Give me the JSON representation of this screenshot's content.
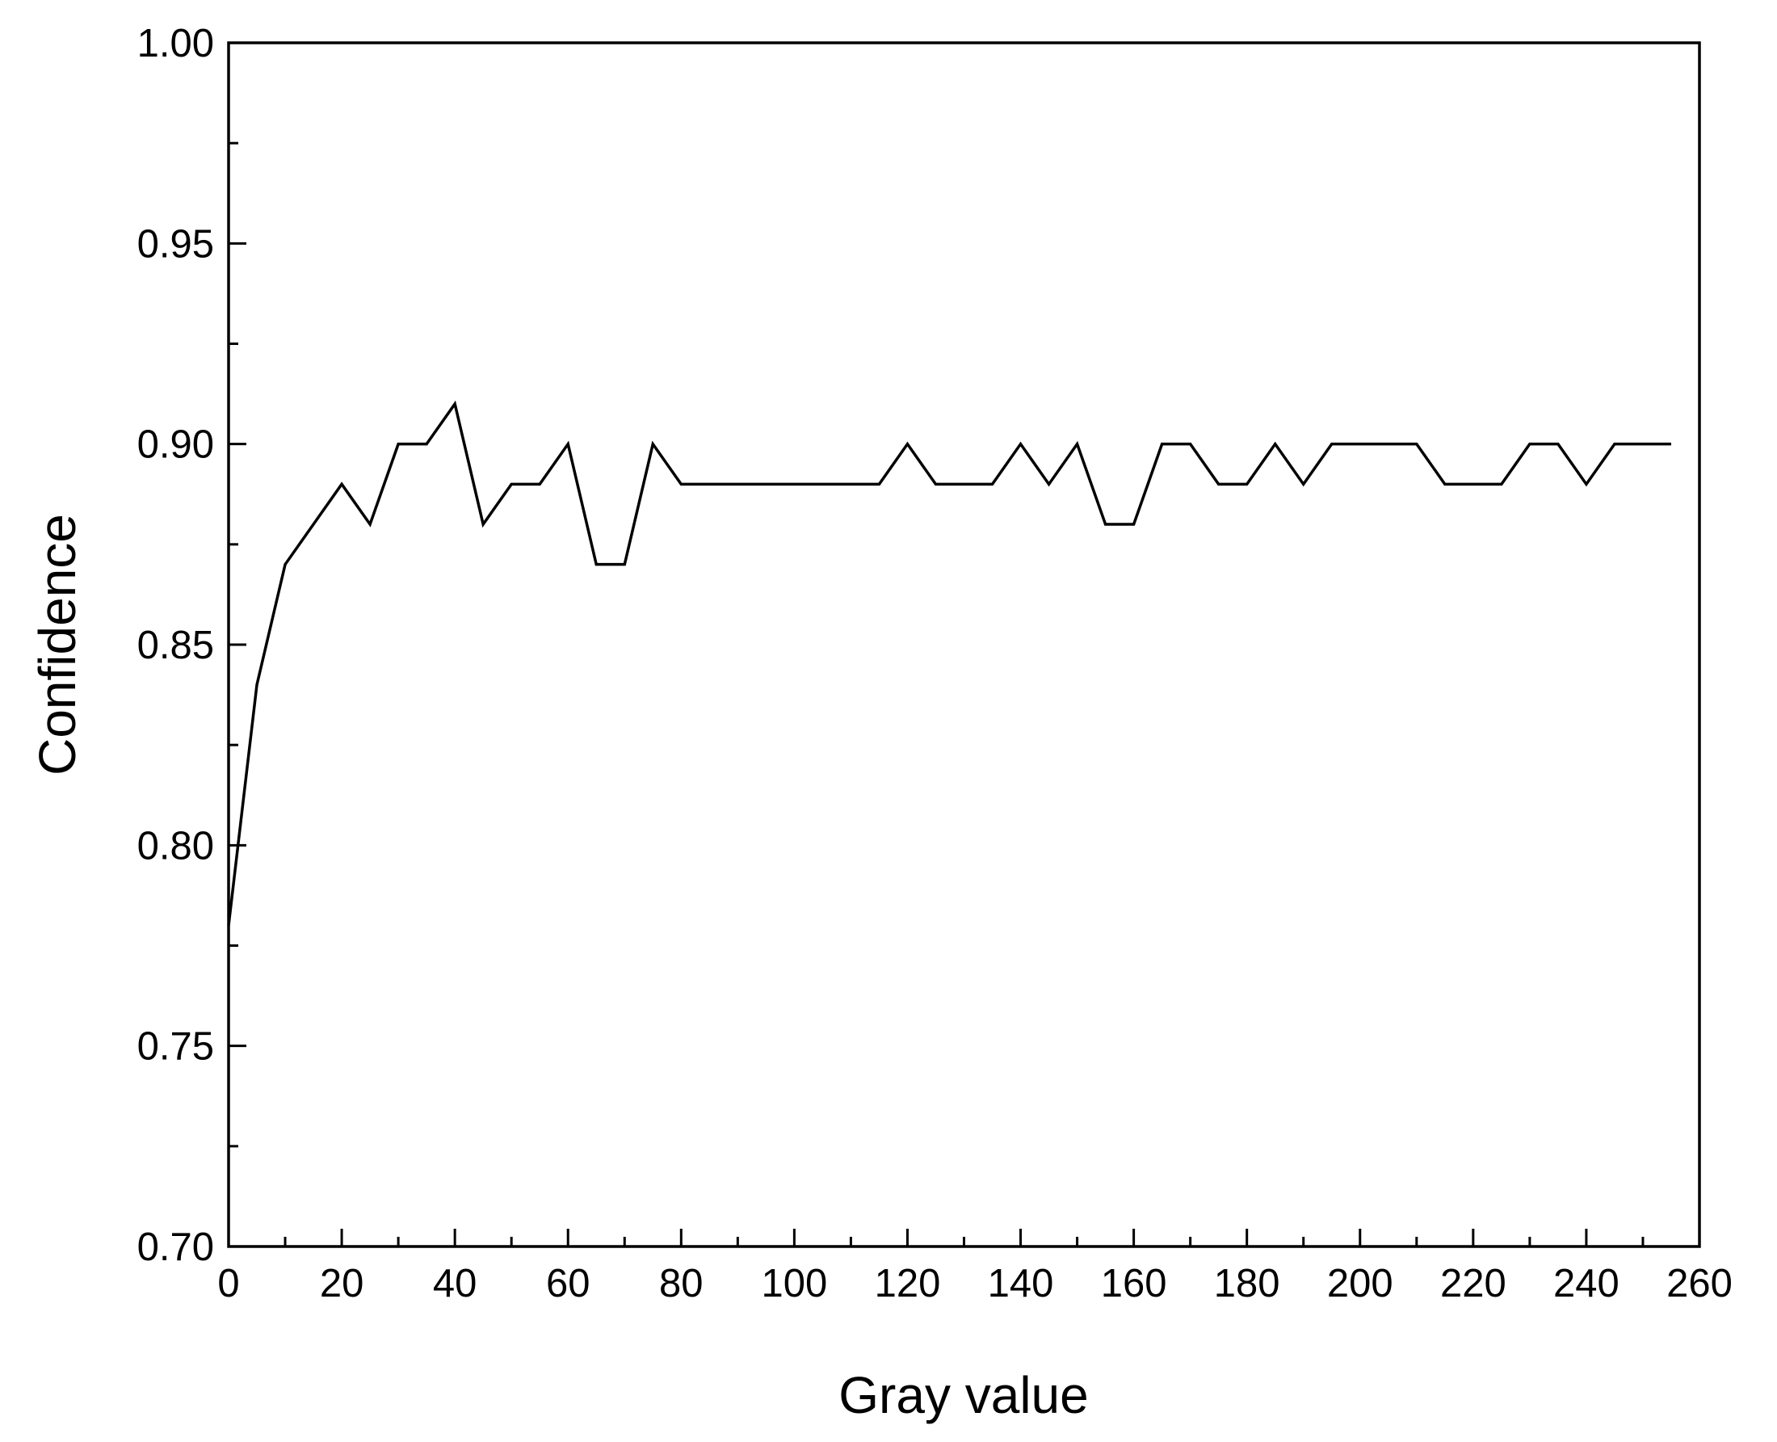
{
  "chart_data": {
    "type": "line",
    "title": "",
    "xlabel": "Gray value",
    "ylabel": "Confidence",
    "xlim": [
      0,
      260
    ],
    "ylim": [
      0.7,
      1.0
    ],
    "grid": false,
    "legend": "none",
    "x_ticks": [
      0,
      20,
      40,
      60,
      80,
      100,
      120,
      140,
      160,
      180,
      200,
      220,
      240,
      260
    ],
    "x_tick_labels": [
      "0",
      "20",
      "40",
      "60",
      "80",
      "100",
      "120",
      "140",
      "160",
      "180",
      "200",
      "220",
      "240",
      "260"
    ],
    "x_minor_step": 10,
    "y_ticks": [
      0.7,
      0.75,
      0.8,
      0.85,
      0.9,
      0.95,
      1.0
    ],
    "y_tick_labels": [
      "0.70",
      "0.75",
      "0.80",
      "0.85",
      "0.90",
      "0.95",
      "1.00"
    ],
    "y_minor_step": 0.025,
    "line_color": "#000000",
    "series": [
      {
        "x": [
          0,
          5,
          10,
          15,
          20,
          25,
          30,
          35,
          40,
          45,
          50,
          55,
          60,
          65,
          70,
          75,
          80,
          85,
          90,
          95,
          100,
          105,
          110,
          115,
          120,
          125,
          130,
          135,
          140,
          145,
          150,
          155,
          160,
          165,
          170,
          175,
          180,
          185,
          190,
          195,
          200,
          205,
          210,
          215,
          220,
          225,
          230,
          235,
          240,
          245,
          250,
          255
        ],
        "values": [
          0.78,
          0.84,
          0.87,
          0.88,
          0.89,
          0.88,
          0.9,
          0.9,
          0.91,
          0.88,
          0.89,
          0.89,
          0.9,
          0.87,
          0.87,
          0.9,
          0.89,
          0.89,
          0.89,
          0.89,
          0.89,
          0.89,
          0.89,
          0.89,
          0.9,
          0.89,
          0.89,
          0.89,
          0.9,
          0.89,
          0.9,
          0.88,
          0.88,
          0.9,
          0.9,
          0.89,
          0.89,
          0.9,
          0.89,
          0.9,
          0.9,
          0.9,
          0.9,
          0.89,
          0.89,
          0.89,
          0.9,
          0.9,
          0.89,
          0.9,
          0.9,
          0.9
        ]
      }
    ]
  }
}
